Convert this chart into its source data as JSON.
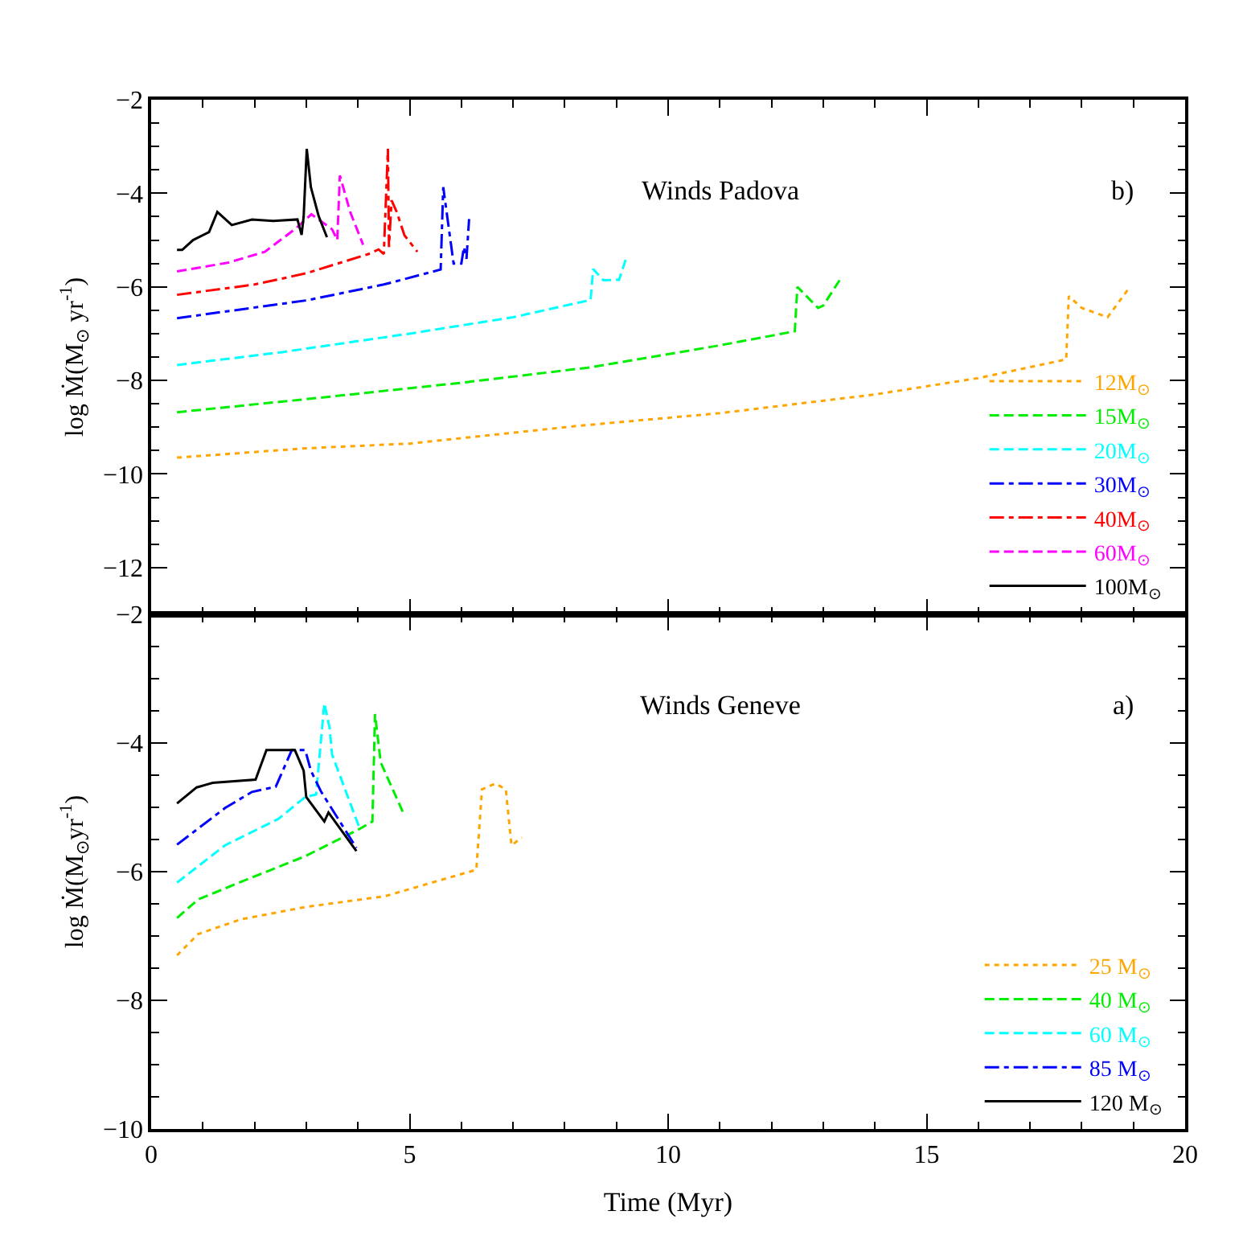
{
  "chart_data": [
    {
      "type": "line",
      "ylabel": "log Ṁ(M$_{⊙}$ yr$^{-1}$)",
      "xlim": [
        0,
        20
      ],
      "xticks": [
        0,
        5,
        10,
        15,
        20
      ],
      "ylim": [
        -13,
        -2
      ],
      "yticks": [
        -12,
        -10,
        -8,
        -6,
        -4,
        -2
      ],
      "tick_labels": "y",
      "legend": "bottom right",
      "annotations": [
        "Winds Padova",
        "b)"
      ],
      "series": [
        {
          "name": "12M$_{⊙}$",
          "color": "#ffa500",
          "line_style": "dotted",
          "x": [
            0.5,
            3,
            5,
            8.27,
            11,
            14,
            16,
            17.7,
            17.75,
            18.0,
            18.5,
            18.9
          ],
          "values": [
            -9.65,
            -9.45,
            -9.35,
            -8.97,
            -8.7,
            -8.3,
            -7.95,
            -7.55,
            -6.2,
            -6.45,
            -6.65,
            -6.05
          ]
        },
        {
          "name": "15M$_{⊙}$",
          "color": "#00ee00",
          "line_style": "dashed",
          "x": [
            0.5,
            3,
            6,
            8.5,
            11,
            12.45,
            12.5,
            12.9,
            13.0,
            13.35
          ],
          "values": [
            -8.68,
            -8.4,
            -8.05,
            -7.72,
            -7.25,
            -6.95,
            -6.0,
            -6.45,
            -6.4,
            -5.8
          ]
        },
        {
          "name": "20M$_{⊙}$",
          "color": "#00ffff",
          "line_style": "dashed",
          "x": [
            0.5,
            2.5,
            5,
            7,
            8.5,
            8.55,
            8.75,
            9.05,
            9.2
          ],
          "values": [
            -7.67,
            -7.4,
            -7.0,
            -6.65,
            -6.28,
            -5.62,
            -5.86,
            -5.85,
            -5.35
          ]
        },
        {
          "name": "30M$_{⊙}$",
          "color": "#0000ff",
          "line_style": "dashdot",
          "x": [
            0.5,
            3,
            4.5,
            5.6,
            5.65,
            5.85,
            6.0,
            6.05,
            6.1,
            6.15
          ],
          "values": [
            -6.67,
            -6.29,
            -5.95,
            -5.63,
            -3.87,
            -5.5,
            -5.5,
            -5.15,
            -5.4,
            -4.55
          ]
        },
        {
          "name": "40M$_{⊙}$",
          "color": "#ff0000",
          "line_style": "dashdot",
          "x": [
            0.5,
            2,
            3,
            4.2,
            4.4,
            4.5,
            4.58,
            4.6,
            4.65,
            4.75,
            4.9,
            5.15
          ],
          "values": [
            -6.17,
            -5.95,
            -5.71,
            -5.3,
            -5.2,
            -5.3,
            -3.05,
            -5.15,
            -4.15,
            -4.4,
            -4.9,
            -5.25
          ]
        },
        {
          "name": "60M$_{⊙}$",
          "color": "#ff00ff",
          "line_style": "dashed",
          "x": [
            0.5,
            1.5,
            2.2,
            2.8,
            3.1,
            3.5,
            3.6,
            3.65,
            3.85,
            4.1
          ],
          "values": [
            -5.67,
            -5.48,
            -5.25,
            -4.75,
            -4.45,
            -4.77,
            -5.0,
            -3.62,
            -4.4,
            -5.1
          ]
        },
        {
          "name": "100M$_{⊙}$",
          "color": "#000000",
          "line_style": "solid",
          "x": [
            0.5,
            0.6,
            0.81,
            1.12,
            1.28,
            1.56,
            1.95,
            2.36,
            2.83,
            2.91,
            2.95,
            3.01,
            3.09,
            3.24,
            3.4
          ],
          "values": [
            -5.21,
            -5.21,
            -5.0,
            -4.83,
            -4.4,
            -4.68,
            -4.56,
            -4.59,
            -4.56,
            -4.89,
            -4.5,
            -3.05,
            -3.87,
            -4.49,
            -4.94
          ]
        }
      ]
    },
    {
      "type": "line",
      "xlabel": "Time (Myr)",
      "ylabel": "log Ṁ(M$_{⊙}$yr$^{-1}$)",
      "xlim": [
        0,
        20
      ],
      "xticks": [
        0,
        5,
        10,
        15,
        20
      ],
      "ylim": [
        -10,
        -2
      ],
      "yticks": [
        -10,
        -8,
        -6,
        -4,
        -2
      ],
      "legend": "bottom right",
      "annotations": [
        "Winds Geneve",
        "a)"
      ],
      "series": [
        {
          "name": "25 M$_{⊙}$",
          "color": "#ffa500",
          "line_style": "dotted",
          "x": [
            0.5,
            0.91,
            1.74,
            2.98,
            4.53,
            6.29,
            6.4,
            6.66,
            6.86,
            6.97,
            7.17
          ],
          "values": [
            -7.3,
            -6.97,
            -6.74,
            -6.55,
            -6.38,
            -5.97,
            -4.72,
            -4.63,
            -4.72,
            -5.59,
            -5.47
          ]
        },
        {
          "name": "40 M$_{⊙}$",
          "color": "#00ee00",
          "line_style": "dashed",
          "x": [
            0.5,
            0.91,
            1.95,
            2.98,
            4.02,
            4.28,
            4.33,
            4.44,
            4.9
          ],
          "values": [
            -6.72,
            -6.43,
            -6.09,
            -5.76,
            -5.34,
            -5.22,
            -3.55,
            -4.3,
            -5.13
          ]
        },
        {
          "name": "60 M$_{⊙}$",
          "color": "#00ffff",
          "line_style": "dashed",
          "x": [
            0.5,
            1.43,
            2.46,
            2.98,
            3.19,
            3.35,
            3.45,
            3.5,
            4.02
          ],
          "values": [
            -6.17,
            -5.59,
            -5.18,
            -4.84,
            -4.8,
            -3.38,
            -3.76,
            -4.18,
            -5.3
          ]
        },
        {
          "name": "85 M$_{⊙}$",
          "color": "#0000ff",
          "line_style": "dashdot",
          "x": [
            0.5,
            1.43,
            1.95,
            2.41,
            2.72,
            2.98,
            3.09,
            3.29,
            3.97
          ],
          "values": [
            -5.58,
            -5.01,
            -4.76,
            -4.68,
            -4.11,
            -4.11,
            -4.43,
            -4.76,
            -5.63
          ]
        },
        {
          "name": "120 M$_{⊙}$",
          "color": "#000000",
          "line_style": "solid",
          "x": [
            0.5,
            0.88,
            1.19,
            2.02,
            2.23,
            2.78,
            2.95,
            3.0,
            3.35,
            3.43,
            3.97
          ],
          "values": [
            -4.94,
            -4.69,
            -4.62,
            -4.57,
            -4.11,
            -4.11,
            -4.43,
            -4.84,
            -5.22,
            -5.08,
            -5.68
          ]
        }
      ]
    }
  ]
}
